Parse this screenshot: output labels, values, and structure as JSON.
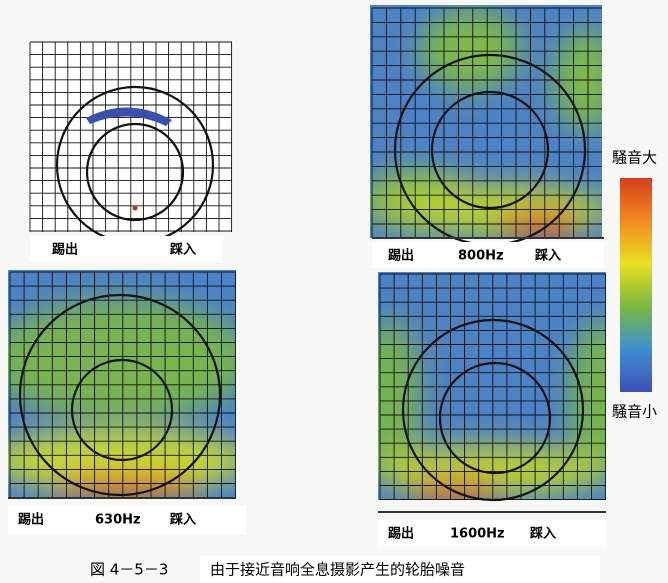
{
  "panels": [
    {
      "left": "踢出",
      "right": "踩入"
    },
    {
      "left": "踢出",
      "frequency": "800Hz",
      "right": "踩入"
    },
    {
      "left": "踢出",
      "frequency": "630Hz",
      "right": "踩入"
    },
    {
      "left": "踢出",
      "frequency": "1600Hz",
      "right": "踩入"
    }
  ],
  "legend": {
    "high": "騒音大",
    "low": "騒音小"
  },
  "caption": {
    "number": "図 4－5－3",
    "text": "由于接近音响全息摄影产生的轮胎噪音"
  }
}
